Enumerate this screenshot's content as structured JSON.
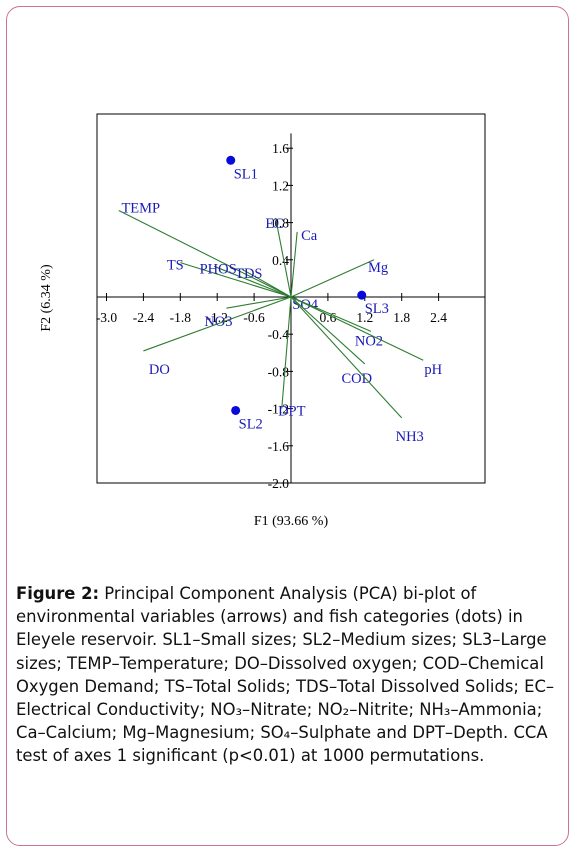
{
  "chart_data": {
    "type": "scatter",
    "xlabel": "F1 (93.66 %)",
    "ylabel": "F2 (6.34 %)",
    "xlim": [
      -3.3,
      3.3
    ],
    "ylim": [
      -2.0,
      2.0
    ],
    "x_ticks": [
      "-3.0",
      "-2.4",
      "-1.8",
      "-1.2",
      "-0.6",
      "0.6",
      "1.2",
      "1.8",
      "2.4"
    ],
    "x_tick_values": [
      -3.0,
      -2.4,
      -1.8,
      -1.2,
      -0.6,
      0.6,
      1.2,
      1.8,
      2.4
    ],
    "y_ticks": [
      "1.6",
      "1.2",
      "0.8",
      "0.4",
      "-0.4",
      "-0.8",
      "-1.2",
      "-1.6",
      "-2.0"
    ],
    "y_tick_values": [
      1.6,
      1.2,
      0.8,
      0.4,
      -0.4,
      -0.8,
      -1.2,
      -1.6,
      -2.0
    ],
    "arrows": [
      {
        "label": "TEMP",
        "x": -2.8,
        "y": 0.93
      },
      {
        "label": "TS",
        "x": -1.8,
        "y": 0.37
      },
      {
        "label": "PHOS",
        "x": -1.25,
        "y": 0.33
      },
      {
        "label": "TDS",
        "x": -0.8,
        "y": 0.3
      },
      {
        "label": "NO3",
        "x": -1.05,
        "y": -0.12
      },
      {
        "label": "DO",
        "x": -2.4,
        "y": -0.58
      },
      {
        "label": "EC",
        "x": -0.25,
        "y": 0.85
      },
      {
        "label": "Ca",
        "x": 0.1,
        "y": 0.7
      },
      {
        "label": "Mg",
        "x": 1.35,
        "y": 0.4
      },
      {
        "label": "SO4",
        "x": 0.1,
        "y": -0.02
      },
      {
        "label": "NO2",
        "x": 1.3,
        "y": -0.37
      },
      {
        "label": "pH",
        "x": 2.15,
        "y": -0.68
      },
      {
        "label": "COD",
        "x": 1.2,
        "y": -0.72
      },
      {
        "label": "NH3",
        "x": 1.8,
        "y": -1.3
      },
      {
        "label": "DPT",
        "x": -0.15,
        "y": -1.2
      }
    ],
    "points": [
      {
        "label": "SL1",
        "x": -0.98,
        "y": 1.47
      },
      {
        "label": "SL2",
        "x": -0.9,
        "y": -1.22
      },
      {
        "label": "SL3",
        "x": 1.15,
        "y": 0.02
      }
    ],
    "colors": {
      "arrow": "#2e7d32",
      "point": "#0a0ad8",
      "label": "#1a1ab8"
    }
  },
  "caption": {
    "label": "Figure 2:",
    "text": " Principal Component Analysis (PCA) bi-plot of environmental variables (arrows) and fish categories (dots) in Eleyele reservoir. SL1–Small sizes; SL2–Medium sizes; SL3–Large sizes; TEMP–Temperature; DO–Dissolved oxygen; COD–Chemical Oxygen Demand; TS–Total Solids; TDS–Total Dissolved Solids; EC–Electrical Conductivity; NO₃–Nitrate; NO₂–Nitrite; NH₃–Ammonia; Ca–Calcium; Mg–Magnesium; SO₄–Sulphate and DPT–Depth. CCA test of axes 1 significant (p<0.01) at 1000 permutations."
  }
}
